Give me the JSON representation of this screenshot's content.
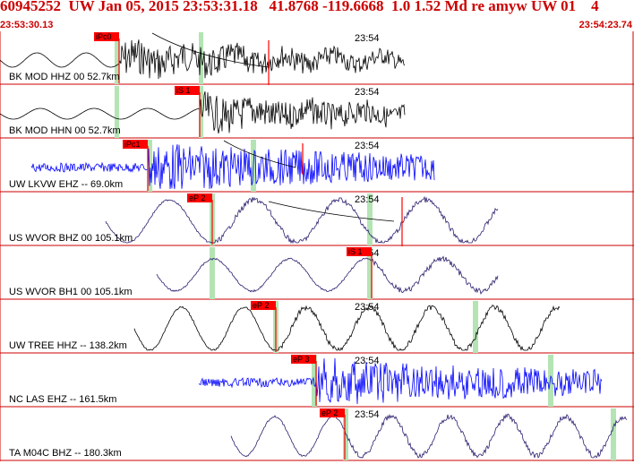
{
  "header": {
    "title": "60945252  UW Jan 05, 2015 23:53:31.18   41.8768 -119.6668  1.0 1.52 Md re amyw UW 01    4",
    "start_time": "23:53:30.13",
    "end_time": "23:54:23.74"
  },
  "colors": {
    "header_text": "#cc0000",
    "waveform_black": "#000000",
    "waveform_blue": "#0000ff",
    "waveform_purple": "#2a1e6e",
    "pick_label_bg": "#ff0000",
    "pick_window": "#b4e4b4",
    "panel_border": "#cc0000"
  },
  "channels": [
    {
      "label": "BK MOD HHZ 00 52.7km",
      "pick": "iPc0",
      "time_mark": "23:54",
      "color": "waveform_black"
    },
    {
      "label": "BK MOD HHN 00 52.7km",
      "pick": "iS 1",
      "time_mark": "23:54",
      "color": "waveform_black"
    },
    {
      "label": "UW LKVW EHZ -- 69.0km",
      "pick": "iPc1",
      "time_mark": "23:54",
      "color": "waveform_blue"
    },
    {
      "label": "US WVOR BHZ 00 105.1km",
      "pick": "eP 2",
      "time_mark": "23:54",
      "color": "waveform_purple"
    },
    {
      "label": "US WVOR BH1 00 105.1km",
      "pick": "iS 1",
      "time_mark": "23:54",
      "color": "waveform_purple"
    },
    {
      "label": "UW TREE HHZ -- 138.2km",
      "pick": "eP 2",
      "time_mark": "23:54",
      "color": "waveform_black"
    },
    {
      "label": "NC LAS EHZ -- 161.5km",
      "pick": "eP 3",
      "time_mark": "23:54",
      "color": "waveform_blue"
    },
    {
      "label": "TA M04C BHZ -- 180.3km",
      "pick": "eP 2",
      "time_mark": "23:54",
      "color": "waveform_purple"
    }
  ]
}
